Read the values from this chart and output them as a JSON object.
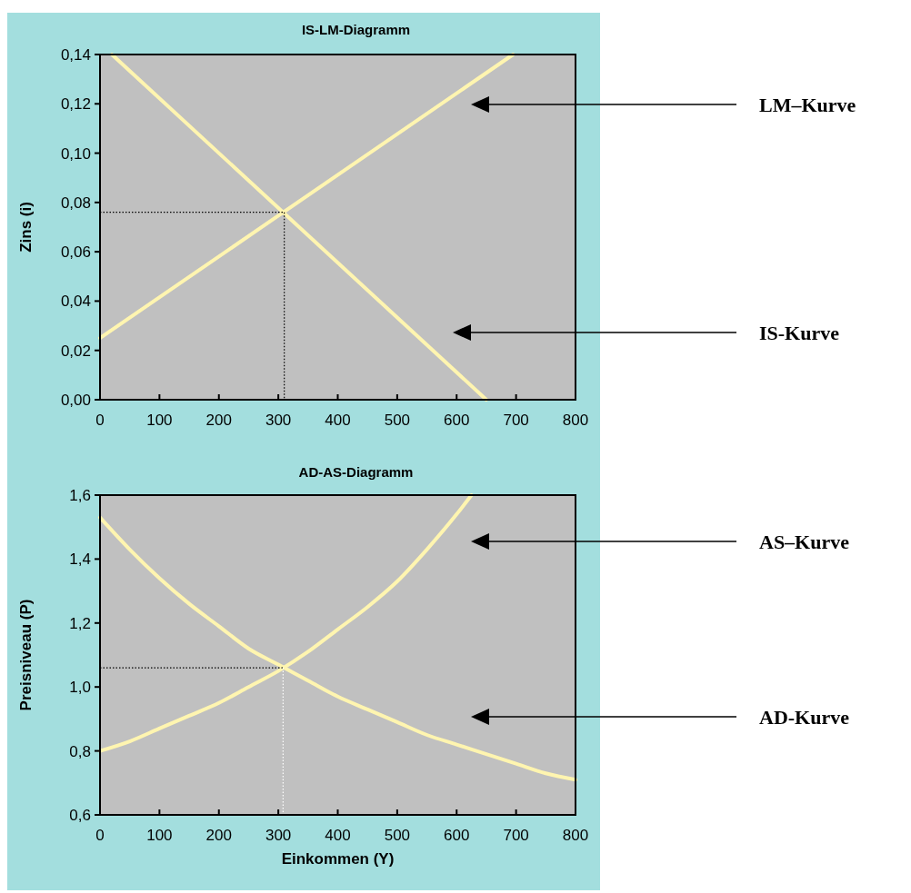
{
  "chart_data": [
    {
      "type": "line",
      "title": "IS-LM-Diagramm",
      "ylabel": "Zins (i)",
      "xlim": [
        0,
        800
      ],
      "xticks": [
        0,
        100,
        200,
        300,
        400,
        500,
        600,
        700,
        800
      ],
      "ylim": [
        0,
        0.14
      ],
      "yticks": [
        {
          "value": 0,
          "label": "0,00"
        },
        {
          "value": 0.02,
          "label": "0,02"
        },
        {
          "value": 0.04,
          "label": "0,04"
        },
        {
          "value": 0.06,
          "label": "0,06"
        },
        {
          "value": 0.08,
          "label": "0,08"
        },
        {
          "value": 0.1,
          "label": "0,10"
        },
        {
          "value": 0.12,
          "label": "0,12"
        },
        {
          "value": 0.14,
          "label": "0,14"
        }
      ],
      "grid": false,
      "marker": "none",
      "series": [
        {
          "color": "#fff5b0",
          "x": [
            20,
            650
          ],
          "values": [
            0.14,
            0
          ]
        },
        {
          "color": "#fff5b0",
          "x": [
            0,
            695
          ],
          "values": [
            0.025,
            0.14
          ]
        },
        {
          "color": "#000000",
          "line_style": "dotted",
          "x": [
            0,
            310
          ],
          "values": [
            0.076,
            0.076
          ]
        },
        {
          "color": "#000000",
          "line_style": "dotted",
          "x": [
            310,
            310
          ],
          "values": [
            0.076,
            0
          ]
        }
      ],
      "annotations": [
        "LM–Kurve",
        "IS-Kurve"
      ]
    },
    {
      "type": "line",
      "title": "AD-AS-Diagramm",
      "xlabel": "Einkommen (Y)",
      "ylabel": "Preisniveau (P)",
      "xlim": [
        0,
        800
      ],
      "xticks": [
        0,
        100,
        200,
        300,
        400,
        500,
        600,
        700,
        800
      ],
      "ylim": [
        0.6,
        1.6
      ],
      "yticks": [
        {
          "value": 0.6,
          "label": "0,6"
        },
        {
          "value": 0.8,
          "label": "0,8"
        },
        {
          "value": 1.0,
          "label": "1,0"
        },
        {
          "value": 1.2,
          "label": "1,2"
        },
        {
          "value": 1.4,
          "label": "1,4"
        },
        {
          "value": 1.6,
          "label": "1,6"
        }
      ],
      "grid": false,
      "marker": "none",
      "series": [
        {
          "color": "#fff5b0",
          "x": [
            0,
            50,
            100,
            150,
            200,
            250,
            300,
            350,
            400,
            450,
            500,
            550,
            600,
            625
          ],
          "values": [
            0.8,
            0.83,
            0.87,
            0.91,
            0.95,
            1.0,
            1.05,
            1.11,
            1.18,
            1.25,
            1.33,
            1.43,
            1.54,
            1.6
          ]
        },
        {
          "color": "#fff5b0",
          "x": [
            0,
            50,
            100,
            150,
            200,
            250,
            300,
            350,
            400,
            450,
            500,
            550,
            600,
            650,
            700,
            750,
            800
          ],
          "values": [
            1.53,
            1.43,
            1.34,
            1.26,
            1.19,
            1.12,
            1.07,
            1.02,
            0.97,
            0.93,
            0.89,
            0.85,
            0.82,
            0.79,
            0.76,
            0.73,
            0.71
          ]
        },
        {
          "color": "#000000",
          "line_style": "dotted",
          "x": [
            0,
            308
          ],
          "values": [
            1.06,
            1.06
          ]
        },
        {
          "color": "#ffffff",
          "line_style": "dotted",
          "x": [
            308,
            308
          ],
          "values": [
            1.06,
            0.6
          ]
        }
      ],
      "annotations": [
        "AS–Kurve",
        "AD-Kurve"
      ]
    }
  ]
}
